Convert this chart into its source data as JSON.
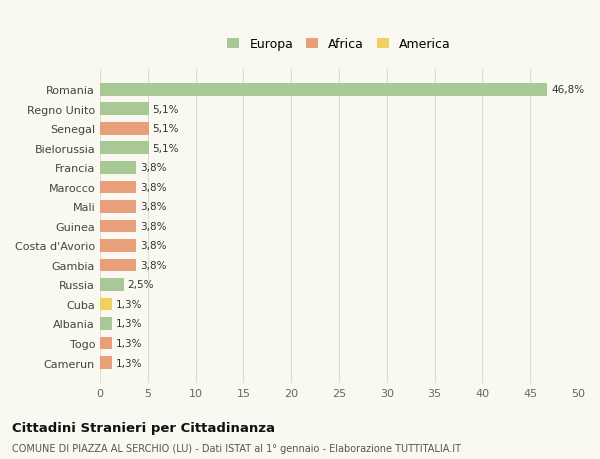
{
  "countries": [
    "Romania",
    "Regno Unito",
    "Senegal",
    "Bielorussia",
    "Francia",
    "Marocco",
    "Mali",
    "Guinea",
    "Costa d'Avorio",
    "Gambia",
    "Russia",
    "Cuba",
    "Albania",
    "Togo",
    "Camerun"
  ],
  "values": [
    46.8,
    5.1,
    5.1,
    5.1,
    3.8,
    3.8,
    3.8,
    3.8,
    3.8,
    3.8,
    2.5,
    1.3,
    1.3,
    1.3,
    1.3
  ],
  "labels": [
    "46,8%",
    "5,1%",
    "5,1%",
    "5,1%",
    "3,8%",
    "3,8%",
    "3,8%",
    "3,8%",
    "3,8%",
    "3,8%",
    "2,5%",
    "1,3%",
    "1,3%",
    "1,3%",
    "1,3%"
  ],
  "continents": [
    "Europa",
    "Europa",
    "Africa",
    "Europa",
    "Europa",
    "Africa",
    "Africa",
    "Africa",
    "Africa",
    "Africa",
    "Europa",
    "America",
    "Europa",
    "Africa",
    "Africa"
  ],
  "colors": {
    "Europa": "#a8c896",
    "Africa": "#e8a07a",
    "America": "#f0d060"
  },
  "xlim": [
    0,
    50
  ],
  "xticks": [
    0,
    5,
    10,
    15,
    20,
    25,
    30,
    35,
    40,
    45,
    50
  ],
  "title": "Cittadini Stranieri per Cittadinanza",
  "subtitle": "COMUNE DI PIAZZA AL SERCHIO (LU) - Dati ISTAT al 1° gennaio - Elaborazione TUTTITALIA.IT",
  "background_color": "#f9f9f2",
  "grid_color": "#ddddcc"
}
